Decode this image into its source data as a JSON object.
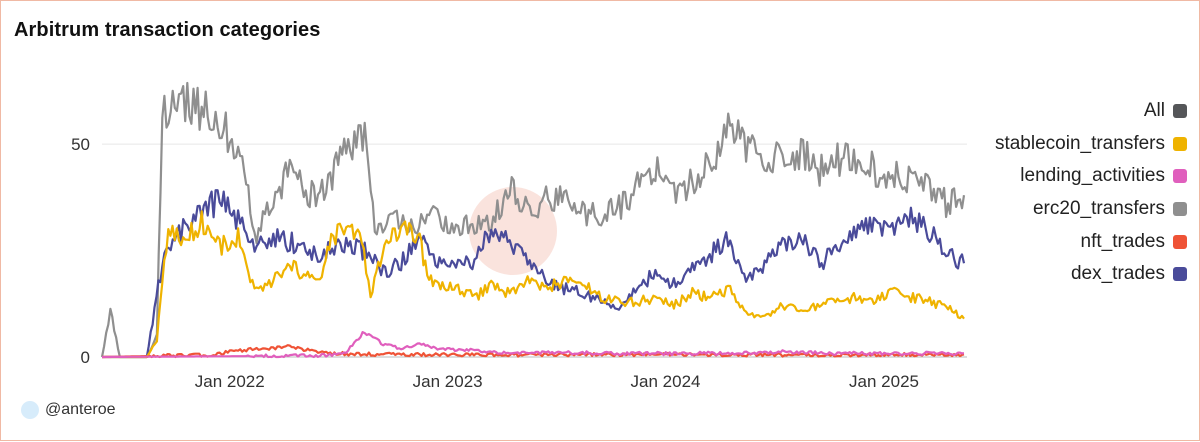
{
  "title": "Arbitrum transaction categories",
  "author": {
    "handle": "@anteroe"
  },
  "chart_data": {
    "type": "line",
    "title": "Arbitrum transaction categories",
    "x_range": [
      "2021-06-01",
      "2025-05-20"
    ],
    "ylim": [
      0,
      66
    ],
    "y_ticks": [
      0,
      50
    ],
    "x_ticks": [
      {
        "date": "2022-01-01",
        "label": "Jan 2022"
      },
      {
        "date": "2023-01-01",
        "label": "Jan 2023"
      },
      {
        "date": "2024-01-01",
        "label": "Jan 2024"
      },
      {
        "date": "2025-01-01",
        "label": "Jan 2025"
      }
    ],
    "grid": "horizontal",
    "legend_position": "right",
    "series": [
      {
        "name": "All",
        "color": "#555659",
        "values": []
      },
      {
        "name": "stablecoin_transfers",
        "color": "#efb300",
        "values": [
          [
            "2021-06-01",
            0
          ],
          [
            "2021-08-15",
            0
          ],
          [
            "2021-09-01",
            4
          ],
          [
            "2021-09-10",
            18
          ],
          [
            "2021-09-20",
            30
          ],
          [
            "2021-10-15",
            27
          ],
          [
            "2021-11-15",
            32
          ],
          [
            "2021-12-15",
            26
          ],
          [
            "2022-01-15",
            28
          ],
          [
            "2022-02-01",
            20
          ],
          [
            "2022-02-15",
            15
          ],
          [
            "2022-03-15",
            18
          ],
          [
            "2022-04-15",
            21
          ],
          [
            "2022-05-15",
            19
          ],
          [
            "2022-06-01",
            17
          ],
          [
            "2022-06-20",
            28
          ],
          [
            "2022-07-15",
            30
          ],
          [
            "2022-08-10",
            28
          ],
          [
            "2022-08-25",
            14
          ],
          [
            "2022-09-10",
            23
          ],
          [
            "2022-10-01",
            28
          ],
          [
            "2022-11-01",
            30
          ],
          [
            "2022-11-15",
            27
          ],
          [
            "2022-12-01",
            18
          ],
          [
            "2022-12-20",
            17
          ],
          [
            "2023-01-15",
            16
          ],
          [
            "2023-02-15",
            14
          ],
          [
            "2023-03-15",
            17
          ],
          [
            "2023-04-15",
            15
          ],
          [
            "2023-05-15",
            18
          ],
          [
            "2023-06-15",
            16
          ],
          [
            "2023-07-15",
            18
          ],
          [
            "2023-08-15",
            17
          ],
          [
            "2023-09-15",
            14
          ],
          [
            "2023-10-15",
            13
          ],
          [
            "2023-11-15",
            13
          ],
          [
            "2023-12-15",
            14
          ],
          [
            "2024-01-15",
            12
          ],
          [
            "2024-02-15",
            15
          ],
          [
            "2024-03-15",
            14
          ],
          [
            "2024-04-15",
            16
          ],
          [
            "2024-05-15",
            10
          ],
          [
            "2024-06-15",
            9
          ],
          [
            "2024-07-15",
            12
          ],
          [
            "2024-08-15",
            11
          ],
          [
            "2024-09-15",
            12
          ],
          [
            "2024-10-15",
            13
          ],
          [
            "2024-11-15",
            14
          ],
          [
            "2024-12-15",
            13
          ],
          [
            "2025-01-15",
            15
          ],
          [
            "2025-02-15",
            14
          ],
          [
            "2025-03-15",
            13
          ],
          [
            "2025-04-15",
            12
          ],
          [
            "2025-05-15",
            9
          ]
        ]
      },
      {
        "name": "lending_activities",
        "color": "#e05fbd",
        "values": [
          [
            "2021-06-01",
            0
          ],
          [
            "2022-06-01",
            0.3
          ],
          [
            "2022-07-15",
            1
          ],
          [
            "2022-08-15",
            6
          ],
          [
            "2022-09-15",
            3
          ],
          [
            "2022-10-15",
            2
          ],
          [
            "2022-11-15",
            3
          ],
          [
            "2022-12-15",
            2
          ],
          [
            "2023-02-15",
            1.5
          ],
          [
            "2023-04-15",
            1
          ],
          [
            "2023-06-15",
            1
          ],
          [
            "2023-08-15",
            1
          ],
          [
            "2023-10-15",
            0.8
          ],
          [
            "2024-01-15",
            0.8
          ],
          [
            "2024-04-15",
            0.9
          ],
          [
            "2024-07-15",
            1.2
          ],
          [
            "2024-10-15",
            0.9
          ],
          [
            "2025-01-15",
            0.8
          ],
          [
            "2025-05-15",
            0.9
          ]
        ]
      },
      {
        "name": "erc20_transfers",
        "color": "#8f8f8f",
        "values": [
          [
            "2021-06-01",
            0
          ],
          [
            "2021-06-15",
            11
          ],
          [
            "2021-07-01",
            0
          ],
          [
            "2021-08-15",
            0
          ],
          [
            "2021-09-01",
            5
          ],
          [
            "2021-09-10",
            58
          ],
          [
            "2021-10-15",
            60
          ],
          [
            "2021-11-15",
            58
          ],
          [
            "2021-12-15",
            55
          ],
          [
            "2022-01-15",
            50
          ],
          [
            "2022-02-01",
            38
          ],
          [
            "2022-02-15",
            28
          ],
          [
            "2022-03-15",
            38
          ],
          [
            "2022-04-15",
            44
          ],
          [
            "2022-05-15",
            38
          ],
          [
            "2022-06-15",
            40
          ],
          [
            "2022-07-15",
            50
          ],
          [
            "2022-08-15",
            52
          ],
          [
            "2022-09-01",
            30
          ],
          [
            "2022-10-01",
            32
          ],
          [
            "2022-11-01",
            30
          ],
          [
            "2022-12-01",
            34
          ],
          [
            "2023-01-15",
            30
          ],
          [
            "2023-02-15",
            31
          ],
          [
            "2023-03-15",
            32
          ],
          [
            "2023-04-15",
            40
          ],
          [
            "2023-05-15",
            34
          ],
          [
            "2023-06-15",
            37
          ],
          [
            "2023-07-15",
            37
          ],
          [
            "2023-08-15",
            34
          ],
          [
            "2023-09-15",
            33
          ],
          [
            "2023-10-15",
            35
          ],
          [
            "2023-11-15",
            40
          ],
          [
            "2023-12-15",
            44
          ],
          [
            "2024-01-15",
            38
          ],
          [
            "2024-02-15",
            41
          ],
          [
            "2024-03-15",
            45
          ],
          [
            "2024-04-15",
            53
          ],
          [
            "2024-05-15",
            50
          ],
          [
            "2024-06-15",
            46
          ],
          [
            "2024-07-15",
            48
          ],
          [
            "2024-08-15",
            48
          ],
          [
            "2024-09-15",
            44
          ],
          [
            "2024-10-15",
            46
          ],
          [
            "2024-11-15",
            47
          ],
          [
            "2024-12-15",
            44
          ],
          [
            "2025-01-15",
            43
          ],
          [
            "2025-02-15",
            42
          ],
          [
            "2025-03-15",
            40
          ],
          [
            "2025-04-15",
            36
          ],
          [
            "2025-05-15",
            38
          ]
        ]
      },
      {
        "name": "nft_trades",
        "color": "#ef5336",
        "values": [
          [
            "2021-06-01",
            0
          ],
          [
            "2021-12-01",
            0.5
          ],
          [
            "2022-01-15",
            1.5
          ],
          [
            "2022-02-15",
            2
          ],
          [
            "2022-03-15",
            2
          ],
          [
            "2022-04-15",
            2.5
          ],
          [
            "2022-05-15",
            1.5
          ],
          [
            "2022-06-15",
            0.8
          ],
          [
            "2022-09-15",
            0.6
          ],
          [
            "2023-01-15",
            0.5
          ],
          [
            "2023-06-15",
            0.5
          ],
          [
            "2024-01-15",
            0.6
          ],
          [
            "2024-06-15",
            0.5
          ],
          [
            "2025-01-15",
            0.5
          ],
          [
            "2025-05-15",
            0.6
          ]
        ]
      },
      {
        "name": "dex_trades",
        "color": "#4a4b9a",
        "values": [
          [
            "2021-06-01",
            0
          ],
          [
            "2021-08-15",
            0
          ],
          [
            "2021-09-10",
            22
          ],
          [
            "2021-10-15",
            30
          ],
          [
            "2021-11-15",
            34
          ],
          [
            "2021-12-15",
            37
          ],
          [
            "2022-01-15",
            32
          ],
          [
            "2022-02-15",
            26
          ],
          [
            "2022-03-15",
            28
          ],
          [
            "2022-04-15",
            27
          ],
          [
            "2022-05-15",
            24
          ],
          [
            "2022-06-15",
            25
          ],
          [
            "2022-07-15",
            26
          ],
          [
            "2022-08-15",
            25
          ],
          [
            "2022-09-15",
            20
          ],
          [
            "2022-10-15",
            22
          ],
          [
            "2022-11-15",
            28
          ],
          [
            "2022-12-15",
            23
          ],
          [
            "2023-01-15",
            23
          ],
          [
            "2023-02-15",
            22
          ],
          [
            "2023-03-15",
            30
          ],
          [
            "2023-04-15",
            27
          ],
          [
            "2023-05-15",
            23
          ],
          [
            "2023-06-15",
            18
          ],
          [
            "2023-07-15",
            16
          ],
          [
            "2023-08-15",
            15
          ],
          [
            "2023-09-15",
            13
          ],
          [
            "2023-10-15",
            12
          ],
          [
            "2023-11-15",
            16
          ],
          [
            "2023-12-15",
            20
          ],
          [
            "2024-01-15",
            17
          ],
          [
            "2024-02-15",
            21
          ],
          [
            "2024-03-15",
            24
          ],
          [
            "2024-04-15",
            28
          ],
          [
            "2024-05-15",
            18
          ],
          [
            "2024-06-15",
            22
          ],
          [
            "2024-07-15",
            26
          ],
          [
            "2024-08-15",
            28
          ],
          [
            "2024-09-15",
            22
          ],
          [
            "2024-10-15",
            25
          ],
          [
            "2024-11-15",
            30
          ],
          [
            "2024-12-15",
            31
          ],
          [
            "2025-01-15",
            29
          ],
          [
            "2025-02-15",
            33
          ],
          [
            "2025-03-15",
            30
          ],
          [
            "2025-04-15",
            24
          ],
          [
            "2025-05-15",
            22
          ]
        ]
      }
    ]
  }
}
